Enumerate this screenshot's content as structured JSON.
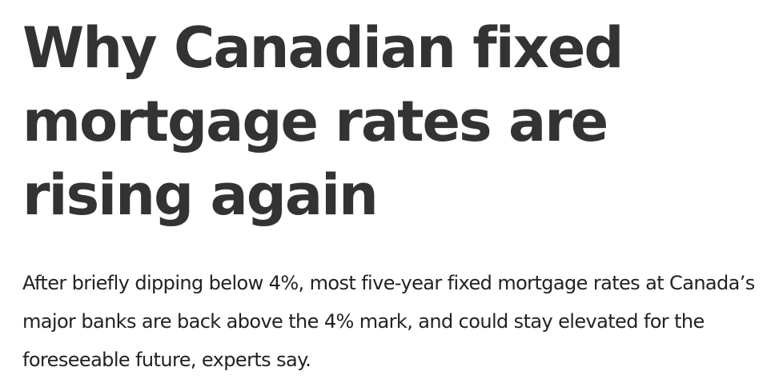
{
  "header": {
    "title": "Why Canadian fixed mortgage rates are rising again"
  },
  "article": {
    "summary": "After briefly dipping below 4%, most five-year fixed mortgage rates at Canada’s major banks are back above the 4% mark, and could stay elevated for the foreseeable future, experts say."
  }
}
